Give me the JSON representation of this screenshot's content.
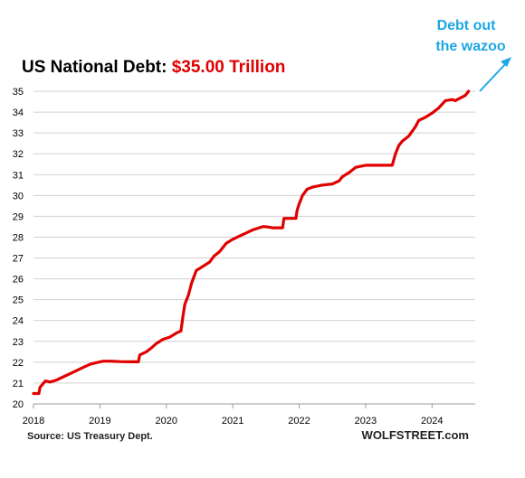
{
  "chart_data": {
    "type": "line",
    "title_prefix": "US National Debt: ",
    "title_value": "$35.00 Trillion",
    "annotation": [
      "Debt out",
      "the wazoo"
    ],
    "source": "Source: US Treasury Dept.",
    "brand": "WOLFSTREET.com",
    "xlim": [
      2018,
      2024.65
    ],
    "ylim": [
      20,
      35
    ],
    "x_ticks": [
      2018,
      2019,
      2020,
      2021,
      2022,
      2023,
      2024
    ],
    "y_ticks": [
      20,
      21,
      22,
      23,
      24,
      25,
      26,
      27,
      28,
      29,
      30,
      31,
      32,
      33,
      34,
      35
    ],
    "grid": "horizontal",
    "colors": {
      "line": "#e00000",
      "title_accent": "#e00000",
      "annotation": "#1ea7e4",
      "grid": "#d0d0d0"
    },
    "series": [
      {
        "x": [
          2018.0,
          2018.08,
          2018.1,
          2018.18,
          2018.25,
          2018.35,
          2018.45,
          2018.55,
          2018.65,
          2018.75,
          2018.85,
          2018.95,
          2019.05,
          2019.15,
          2019.3,
          2019.45,
          2019.58,
          2019.6,
          2019.7,
          2019.78,
          2019.85,
          2019.95,
          2020.05,
          2020.15,
          2020.22,
          2020.25,
          2020.28,
          2020.33,
          2020.38,
          2020.45,
          2020.55,
          2020.65,
          2020.72,
          2020.8,
          2020.9,
          2021.0,
          2021.1,
          2021.2,
          2021.3,
          2021.45,
          2021.5,
          2021.6,
          2021.75,
          2021.77,
          2021.95,
          2021.97,
          2022.0,
          2022.05,
          2022.12,
          2022.2,
          2022.35,
          2022.5,
          2022.6,
          2022.65,
          2022.75,
          2022.85,
          2023.0,
          2023.2,
          2023.4,
          2023.45,
          2023.5,
          2023.55,
          2023.65,
          2023.75,
          2023.8,
          2023.9,
          2024.0,
          2024.1,
          2024.2,
          2024.3,
          2024.35,
          2024.5,
          2024.55
        ],
        "y": [
          20.5,
          20.5,
          20.8,
          21.1,
          21.05,
          21.15,
          21.3,
          21.45,
          21.6,
          21.75,
          21.9,
          21.98,
          22.05,
          22.05,
          22.03,
          22.02,
          22.02,
          22.35,
          22.5,
          22.7,
          22.9,
          23.1,
          23.2,
          23.4,
          23.5,
          24.2,
          24.8,
          25.2,
          25.8,
          26.4,
          26.6,
          26.8,
          27.1,
          27.3,
          27.7,
          27.9,
          28.05,
          28.2,
          28.35,
          28.5,
          28.5,
          28.45,
          28.45,
          28.9,
          28.9,
          29.3,
          29.6,
          30.0,
          30.3,
          30.4,
          30.5,
          30.55,
          30.7,
          30.9,
          31.1,
          31.35,
          31.45,
          31.45,
          31.45,
          32.0,
          32.4,
          32.6,
          32.85,
          33.3,
          33.6,
          33.75,
          33.95,
          34.2,
          34.55,
          34.6,
          34.55,
          34.8,
          35.0
        ]
      }
    ]
  }
}
